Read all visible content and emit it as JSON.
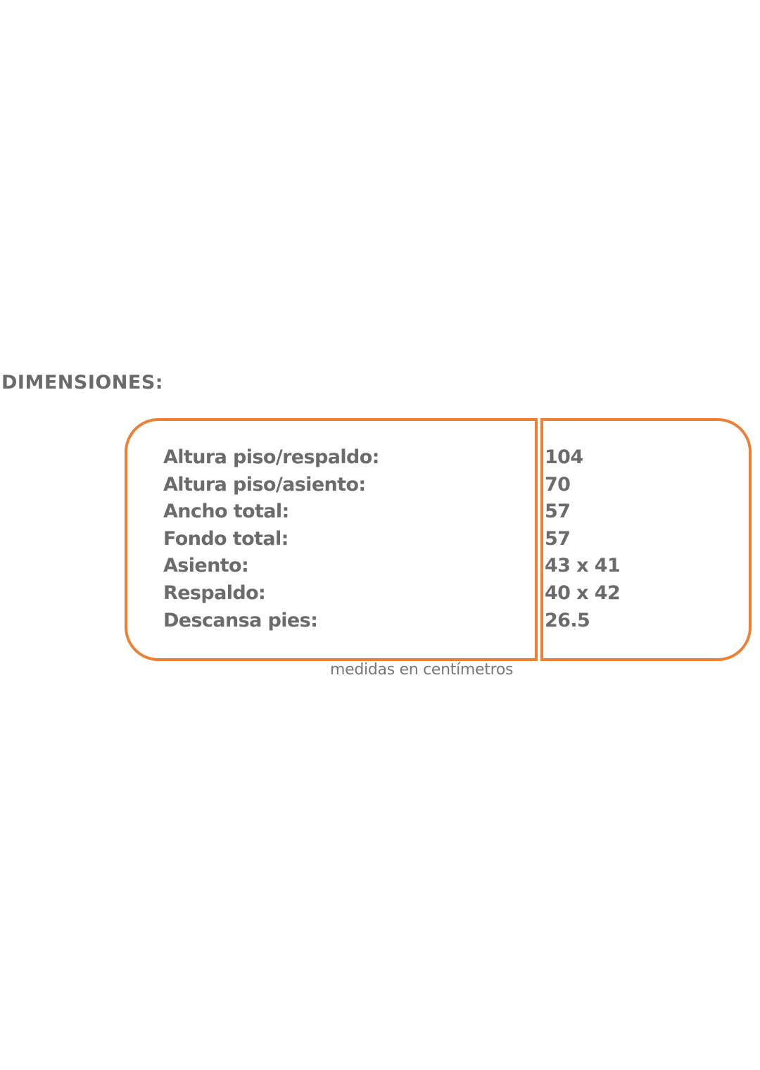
{
  "title": "DIMENSIONES:",
  "accent_color": "#ec8136",
  "rows": [
    {
      "label": "Altura piso/respaldo:",
      "value": "104"
    },
    {
      "label": "Altura piso/asiento:",
      "value": "70"
    },
    {
      "label": "Ancho total:",
      "value": "57"
    },
    {
      "label": "Fondo total:",
      "value": "57"
    },
    {
      "label": "Asiento:",
      "value": "43 x 41"
    },
    {
      "label": "Respaldo:",
      "value": "40 x 42"
    },
    {
      "label": "Descansa pies:",
      "value": "26.5"
    }
  ],
  "caption": "medidas en centímetros"
}
